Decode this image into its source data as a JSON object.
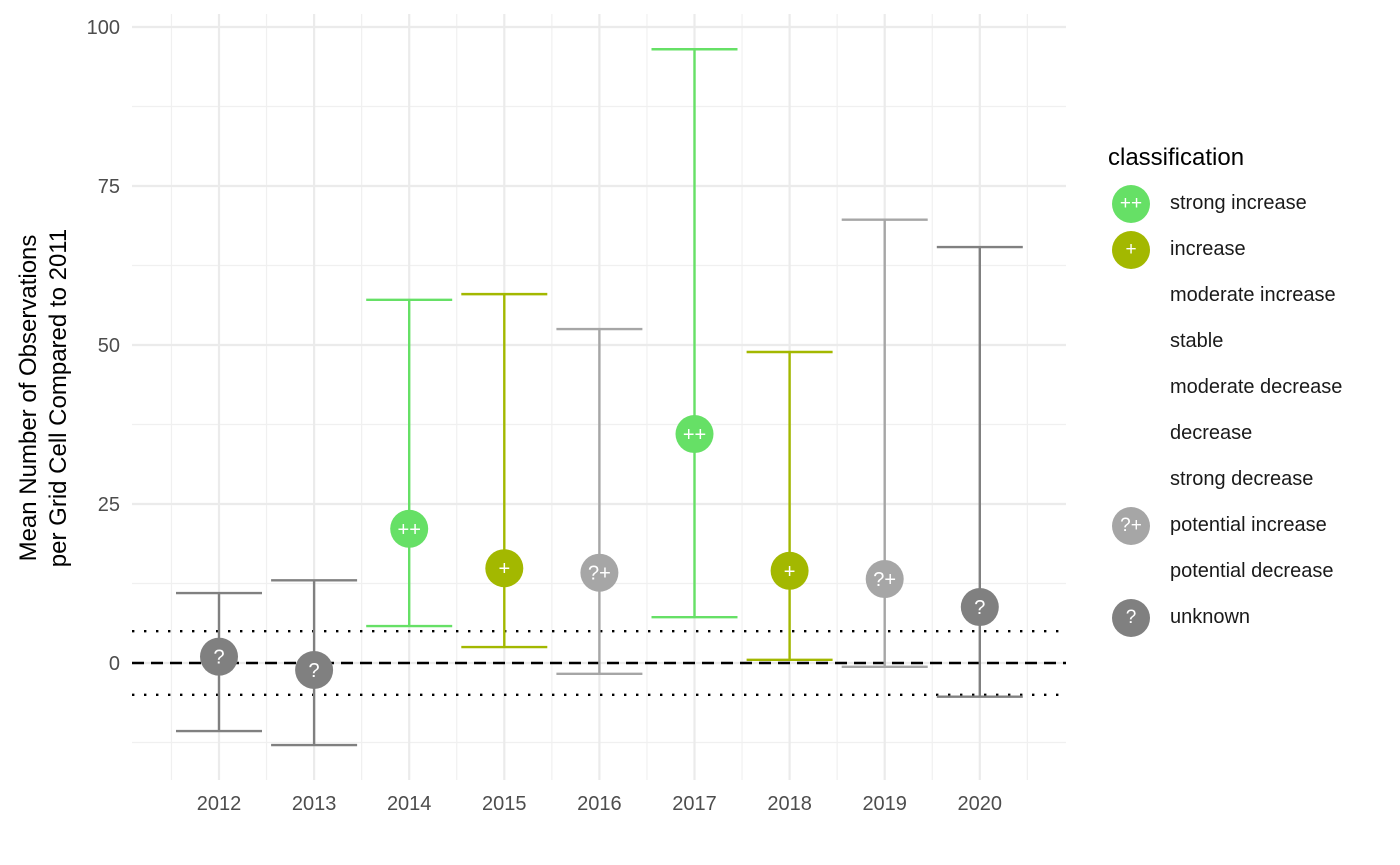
{
  "chart_data": {
    "type": "errorbar-point",
    "title": "",
    "xlabel": "",
    "ylabel": "Mean Number of Observations\nper Grid Cell Compared to 2011",
    "ylabel_lines": [
      "Mean Number of Observations",
      "per Grid Cell Compared to 2011"
    ],
    "ylim": [
      -18,
      102
    ],
    "yticks": [
      0,
      25,
      50,
      75,
      100
    ],
    "grid": true,
    "reference_lines": {
      "dashed": 0,
      "dotted": [
        -5,
        5
      ]
    },
    "categories": [
      "2012",
      "2013",
      "2014",
      "2015",
      "2016",
      "2017",
      "2018",
      "2019",
      "2020"
    ],
    "points": [
      {
        "year": "2012",
        "value": 1.0,
        "lower": -10.7,
        "upper": 11.0,
        "classification": "unknown"
      },
      {
        "year": "2013",
        "value": -1.1,
        "lower": -12.9,
        "upper": 13.0,
        "classification": "unknown"
      },
      {
        "year": "2014",
        "value": 21.1,
        "lower": 5.8,
        "upper": 57.1,
        "classification": "strong increase"
      },
      {
        "year": "2015",
        "value": 14.9,
        "lower": 2.5,
        "upper": 58.0,
        "classification": "increase"
      },
      {
        "year": "2016",
        "value": 14.2,
        "lower": -1.7,
        "upper": 52.5,
        "classification": "potential increase"
      },
      {
        "year": "2017",
        "value": 36.0,
        "lower": 7.2,
        "upper": 96.5,
        "classification": "strong increase"
      },
      {
        "year": "2018",
        "value": 14.5,
        "lower": 0.5,
        "upper": 48.9,
        "classification": "increase"
      },
      {
        "year": "2019",
        "value": 13.2,
        "lower": -0.6,
        "upper": 69.7,
        "classification": "potential increase"
      },
      {
        "year": "2020",
        "value": 8.8,
        "lower": -5.3,
        "upper": 65.4,
        "classification": "unknown"
      }
    ],
    "legend": {
      "title": "classification",
      "position": "right",
      "items": [
        {
          "label": "strong increase",
          "symbol": "++",
          "color": "#66E066"
        },
        {
          "label": "increase",
          "symbol": "+",
          "color": "#A3B800"
        },
        {
          "label": "moderate increase",
          "symbol": "",
          "color": ""
        },
        {
          "label": "stable",
          "symbol": "",
          "color": ""
        },
        {
          "label": "moderate decrease",
          "symbol": "",
          "color": ""
        },
        {
          "label": "decrease",
          "symbol": "",
          "color": ""
        },
        {
          "label": "strong decrease",
          "symbol": "",
          "color": ""
        },
        {
          "label": "potential increase",
          "symbol": "?+",
          "color": "#A6A6A6"
        },
        {
          "label": "potential decrease",
          "symbol": "",
          "color": ""
        },
        {
          "label": "unknown",
          "symbol": "?",
          "color": "#808080"
        }
      ]
    }
  }
}
